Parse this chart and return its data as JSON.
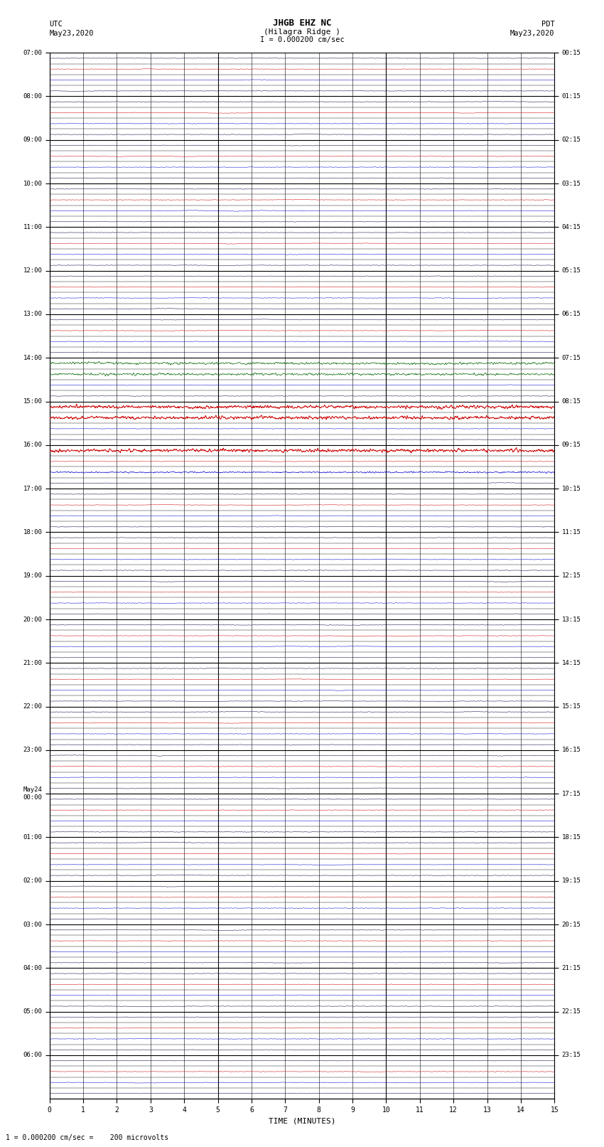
{
  "title_line1": "JHGB EHZ NC",
  "title_line2": "(Hilagra Ridge )",
  "scale_label": "I = 0.000200 cm/sec",
  "left_header_line1": "UTC",
  "left_header_line2": "May23,2020",
  "right_header_line1": "PDT",
  "right_header_line2": "May23,2020",
  "footer_label": "1 = 0.000200 cm/sec =    200 microvolts",
  "xlabel": "TIME (MINUTES)",
  "left_times_labeled": [
    0,
    4,
    8,
    12,
    16,
    20,
    24,
    28,
    32,
    36,
    40,
    44,
    48,
    52,
    56,
    60,
    64,
    68,
    72,
    76,
    80,
    84,
    88,
    92
  ],
  "left_time_labels": [
    "07:00",
    "08:00",
    "09:00",
    "10:00",
    "11:00",
    "12:00",
    "13:00",
    "14:00",
    "15:00",
    "16:00",
    "17:00",
    "18:00",
    "19:00",
    "20:00",
    "21:00",
    "22:00",
    "23:00",
    "May24\n00:00",
    "01:00",
    "02:00",
    "03:00",
    "04:00",
    "05:00",
    "06:00"
  ],
  "right_times_labeled": [
    0,
    4,
    8,
    12,
    16,
    20,
    24,
    28,
    32,
    36,
    40,
    44,
    48,
    52,
    56,
    60,
    64,
    68,
    72,
    76,
    80,
    84,
    88,
    92
  ],
  "right_time_labels": [
    "00:15",
    "01:15",
    "02:15",
    "03:15",
    "04:15",
    "05:15",
    "06:15",
    "07:15",
    "08:15",
    "09:15",
    "10:15",
    "11:15",
    "12:15",
    "13:15",
    "14:15",
    "15:15",
    "16:15",
    "17:15",
    "18:15",
    "19:15",
    "20:15",
    "21:15",
    "22:15",
    "23:15"
  ],
  "num_rows": 96,
  "bg_color": "#ffffff",
  "trace_color_dark": "#000040",
  "trace_color_red": "#cc0000",
  "trace_color_blue": "#0000cc",
  "trace_color_green": "#006600",
  "grid_major_color": "#000000",
  "grid_minor_color": "#000000",
  "special_green_rows": [
    28,
    29
  ],
  "special_blue_rows": [
    38
  ],
  "special_red_rows": [
    32,
    33,
    36
  ],
  "bold_rows": [
    32
  ]
}
